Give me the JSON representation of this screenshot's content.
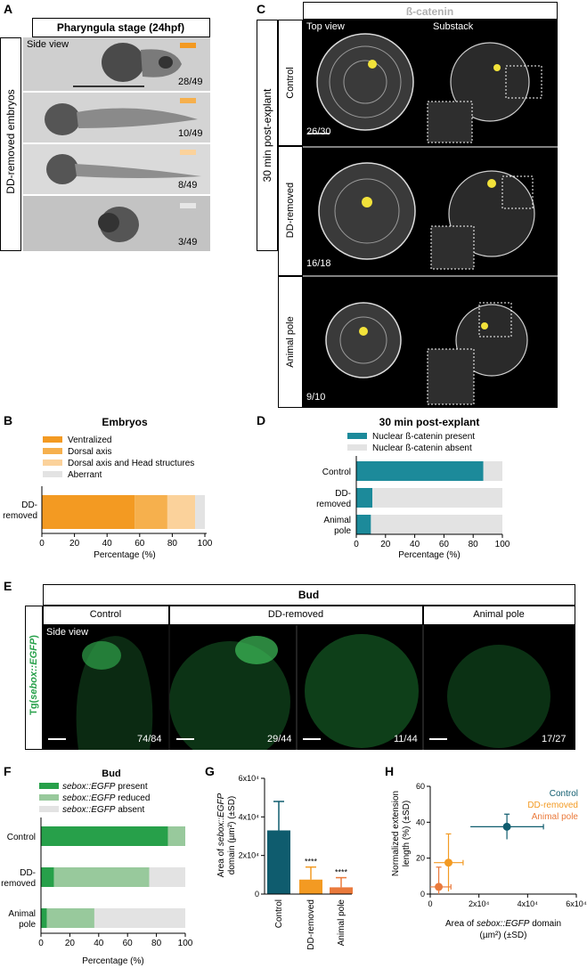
{
  "panelA": {
    "label": "A",
    "title": "Pharyngula stage (24hpf)",
    "row_label": "DD-removed embryos",
    "side_view": "Side view",
    "counts": [
      "28/49",
      "10/49",
      "8/49",
      "3/49"
    ],
    "swatches": [
      "#f39a22",
      "#f6b04d",
      "#fbd29b",
      "#e6e6e6"
    ]
  },
  "panelB": {
    "label": "B",
    "title": "Embryos",
    "legend": [
      "Ventralized",
      "Dorsal axis",
      "Dorsal axis and Head structures",
      "Aberrant"
    ],
    "colors": [
      "#f39a22",
      "#f6b04d",
      "#fbd29b",
      "#e3e3e3"
    ],
    "category_line1": "DD-",
    "category_line2": "removed",
    "xlabel": "Percentage (%)",
    "ticks": [
      "0",
      "20",
      "40",
      "60",
      "80",
      "100"
    ]
  },
  "panelC": {
    "label": "C",
    "title": "ß-catenin",
    "col_headers": [
      "Top view",
      "Substack"
    ],
    "side_label": "30 min post-explant",
    "rows": [
      "Control",
      "DD-removed",
      "Animal pole"
    ],
    "counts": [
      "26/30",
      "16/18",
      "9/10"
    ]
  },
  "panelD": {
    "label": "D",
    "title": "30 min post-explant",
    "legend": [
      "Nuclear ß-catenin present",
      "Nuclear ß-catenin absent"
    ],
    "colors": [
      "#1c8a9a",
      "#e3e3e3"
    ],
    "categories": [
      "Control",
      "DD-removed",
      "Animal pole"
    ],
    "cat_lines": [
      [
        "Control"
      ],
      [
        "DD-",
        "removed"
      ],
      [
        "Animal",
        "pole"
      ]
    ],
    "xlabel": "Percentage (%)",
    "ticks": [
      "0",
      "20",
      "40",
      "60",
      "80",
      "100"
    ]
  },
  "panelE": {
    "label": "E",
    "title": "Bud",
    "col_headers": [
      "Control",
      "DD-removed",
      "Animal pole"
    ],
    "side_label_pre": "Tg(",
    "side_label_it": "sebox::EGFP",
    "side_label_post": ")",
    "side_view": "Side view",
    "counts": [
      "74/84",
      "29/44",
      "11/44",
      "17/27"
    ]
  },
  "panelF": {
    "label": "F",
    "title": "Bud",
    "legend_it": [
      "sebox::EGFP",
      "sebox::EGFP",
      "sebox::EGFP"
    ],
    "legend_rest": [
      " present",
      " reduced",
      " absent"
    ],
    "colors": [
      "#27a04a",
      "#98c99c",
      "#e3e3e3"
    ],
    "cat_lines": [
      [
        "Control"
      ],
      [
        "DD-",
        "removed"
      ],
      [
        "Animal",
        "pole"
      ]
    ],
    "xlabel": "Percentage (%)",
    "ticks": [
      "0",
      "20",
      "40",
      "60",
      "80",
      "100"
    ]
  },
  "panelG": {
    "label": "G",
    "ylabel_line1_pre": "Area of ",
    "ylabel_line1_it": "sebox::EGFP",
    "ylabel_line2": "domain (µm²) (±SD)",
    "yticks": [
      "0",
      "2x10⁴",
      "4x10⁴",
      "6x10⁴"
    ],
    "categories": [
      "Control",
      "DD-removed",
      "Animal pole"
    ],
    "sig": [
      "****",
      "****"
    ]
  },
  "panelH": {
    "label": "H",
    "legend": [
      "Control",
      "DD-removed",
      "Animal pole"
    ],
    "colors": [
      "#0f5c6e",
      "#f39a22",
      "#ea7a3c"
    ],
    "ylabel_line1": "Normalized extension",
    "ylabel_line2": "length (%) (±SD)",
    "xlabel_line1_pre": "Area of ",
    "xlabel_line1_it": "sebox::EGFP",
    "xlabel_line1_post": " domain",
    "xlabel_line2": "(µm²) (±SD)",
    "xticks": [
      "0",
      "2x10⁴",
      "4x10⁴",
      "6x10⁴"
    ],
    "yticks": [
      "0",
      "20",
      "40",
      "60"
    ]
  },
  "chart_data": [
    {
      "panel": "B",
      "type": "bar",
      "orientation": "horizontal",
      "stacked": true,
      "title": "Embryos",
      "xlabel": "Percentage (%)",
      "xlim": [
        0,
        100
      ],
      "categories": [
        "DD-removed"
      ],
      "series": [
        {
          "name": "Ventralized",
          "values": [
            57
          ]
        },
        {
          "name": "Dorsal axis",
          "values": [
            20
          ]
        },
        {
          "name": "Dorsal axis and Head structures",
          "values": [
            17
          ]
        },
        {
          "name": "Aberrant",
          "values": [
            6
          ]
        }
      ]
    },
    {
      "panel": "D",
      "type": "bar",
      "orientation": "horizontal",
      "stacked": true,
      "title": "30 min post-explant",
      "xlabel": "Percentage (%)",
      "xlim": [
        0,
        100
      ],
      "categories": [
        "Control",
        "DD-removed",
        "Animal pole"
      ],
      "series": [
        {
          "name": "Nuclear ß-catenin present",
          "values": [
            87,
            11,
            10
          ]
        },
        {
          "name": "Nuclear ß-catenin absent",
          "values": [
            13,
            89,
            90
          ]
        }
      ]
    },
    {
      "panel": "F",
      "type": "bar",
      "orientation": "horizontal",
      "stacked": true,
      "title": "Bud",
      "xlabel": "Percentage (%)",
      "xlim": [
        0,
        100
      ],
      "categories": [
        "Control",
        "DD-removed",
        "Animal pole"
      ],
      "series": [
        {
          "name": "sebox::EGFP present",
          "values": [
            88,
            9,
            4
          ]
        },
        {
          "name": "sebox::EGFP reduced",
          "values": [
            12,
            66,
            33
          ]
        },
        {
          "name": "sebox::EGFP absent",
          "values": [
            0,
            25,
            63
          ]
        }
      ]
    },
    {
      "panel": "G",
      "type": "bar",
      "ylabel": "Area of sebox::EGFP domain (µm²) (±SD)",
      "ylim": [
        0,
        60000
      ],
      "categories": [
        "Control",
        "DD-removed",
        "Animal pole"
      ],
      "values": [
        33000,
        7500,
        3500
      ],
      "errors": [
        15000,
        6500,
        5000
      ],
      "colors": [
        "#0f5c6e",
        "#f39a22",
        "#ea7a3c"
      ],
      "annotations": [
        "",
        "****",
        "****"
      ]
    },
    {
      "panel": "H",
      "type": "scatter",
      "xlabel": "Area of sebox::EGFP domain (µm²) (±SD)",
      "ylabel": "Normalized extension length (%) (±SD)",
      "xlim": [
        0,
        60000
      ],
      "ylim": [
        0,
        60
      ],
      "series": [
        {
          "name": "Control",
          "x": [
            31500
          ],
          "y": [
            37.5
          ],
          "xerr": [
            15000
          ],
          "yerr": [
            7
          ]
        },
        {
          "name": "DD-removed",
          "x": [
            7500
          ],
          "y": [
            17.5
          ],
          "xerr": [
            6000
          ],
          "yerr": [
            16
          ]
        },
        {
          "name": "Animal pole",
          "x": [
            3500
          ],
          "y": [
            4
          ],
          "xerr": [
            5000
          ],
          "yerr": [
            11
          ]
        }
      ]
    }
  ]
}
